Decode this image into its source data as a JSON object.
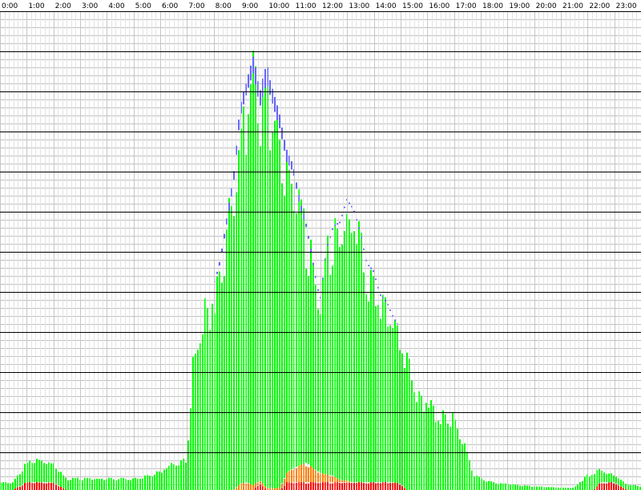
{
  "chart_data": {
    "type": "area",
    "stacked": true,
    "x_unit": "hour of day",
    "xlim": [
      0,
      24
    ],
    "ylim": [
      0,
      615
    ],
    "grid": true,
    "legend": "none",
    "tick_labels": [
      "0:00",
      "1:00",
      "2:00",
      "3:00",
      "4:00",
      "5:00",
      "6:00",
      "7:00",
      "8:00",
      "9:00",
      "10:00",
      "11:00",
      "12:00",
      "13:00",
      "14:00",
      "15:00",
      "16:00",
      "17:00",
      "18:00",
      "19:00",
      "20:00",
      "21:00",
      "22:00",
      "23:00"
    ],
    "x": [
      0,
      0.5,
      1,
      1.5,
      2,
      2.5,
      3,
      3.5,
      4,
      4.5,
      5,
      5.5,
      6,
      6.5,
      7,
      7.25,
      7.5,
      7.75,
      8,
      8.25,
      8.5,
      8.75,
      9,
      9.25,
      9.5,
      9.75,
      10,
      10.25,
      10.5,
      10.75,
      11,
      11.25,
      11.5,
      11.75,
      12,
      12.25,
      12.5,
      12.75,
      13,
      13.25,
      13.5,
      13.75,
      14,
      14.25,
      14.5,
      14.75,
      15,
      15.25,
      15.5,
      15.75,
      16,
      16.25,
      16.5,
      16.75,
      17,
      17.25,
      17.5,
      17.75,
      18,
      18.25,
      18.5,
      19,
      19.5,
      20,
      20.5,
      21,
      21.5,
      22,
      22.25,
      22.5,
      22.75,
      23,
      23.5,
      24
    ],
    "series": [
      {
        "color": "#ff0000",
        "values": [
          0,
          0,
          10,
          10,
          10,
          0,
          0,
          0,
          0,
          0,
          0,
          0,
          0,
          0,
          0,
          0,
          0,
          0,
          0,
          0,
          0,
          0,
          0,
          0,
          0,
          8,
          0,
          0,
          0,
          10,
          10,
          10,
          10,
          10,
          10,
          10,
          10,
          10,
          10,
          10,
          10,
          10,
          10,
          10,
          10,
          10,
          8,
          0,
          0,
          0,
          0,
          0,
          0,
          0,
          0,
          0,
          0,
          0,
          0,
          0,
          0,
          0,
          0,
          0,
          0,
          0,
          0,
          0,
          0,
          10,
          10,
          10,
          0,
          0
        ]
      },
      {
        "color": "#ff8000",
        "values": [
          0,
          0,
          0,
          0,
          0,
          0,
          0,
          0,
          0,
          0,
          0,
          0,
          0,
          0,
          0,
          0,
          0,
          0,
          0,
          0,
          0,
          0,
          8,
          10,
          6,
          4,
          3,
          2,
          3,
          12,
          18,
          22,
          25,
          18,
          12,
          10,
          8,
          3,
          2,
          0,
          0,
          0,
          0,
          0,
          0,
          0,
          0,
          0,
          0,
          0,
          0,
          0,
          0,
          0,
          0,
          0,
          0,
          0,
          0,
          0,
          0,
          0,
          0,
          0,
          0,
          0,
          0,
          0,
          0,
          0,
          0,
          0,
          0,
          0
        ]
      },
      {
        "color": "#00ff00",
        "values": [
          10,
          10,
          25,
          30,
          25,
          15,
          15,
          15,
          15,
          15,
          15,
          18,
          25,
          35,
          40,
          170,
          210,
          240,
          260,
          290,
          340,
          390,
          470,
          500,
          530,
          480,
          520,
          490,
          460,
          400,
          380,
          330,
          300,
          260,
          220,
          290,
          320,
          330,
          360,
          350,
          320,
          280,
          270,
          240,
          230,
          210,
          200,
          170,
          145,
          125,
          120,
          110,
          100,
          95,
          95,
          75,
          50,
          20,
          15,
          12,
          10,
          8,
          6,
          5,
          4,
          3,
          3,
          20,
          22,
          18,
          12,
          10,
          8,
          5
        ]
      },
      {
        "color": "#6666ff",
        "values": [
          0,
          0,
          0,
          0,
          0,
          0,
          0,
          0,
          0,
          0,
          0,
          0,
          0,
          0,
          0,
          0,
          0,
          0,
          0,
          5,
          8,
          12,
          15,
          18,
          20,
          22,
          24,
          20,
          18,
          15,
          10,
          8,
          5,
          3,
          2,
          2,
          2,
          2,
          2,
          2,
          2,
          2,
          2,
          2,
          2,
          2,
          0,
          0,
          0,
          0,
          0,
          0,
          0,
          0,
          0,
          0,
          0,
          0,
          0,
          0,
          0,
          0,
          0,
          0,
          0,
          0,
          0,
          0,
          0,
          0,
          0,
          0,
          0,
          0
        ]
      }
    ]
  }
}
